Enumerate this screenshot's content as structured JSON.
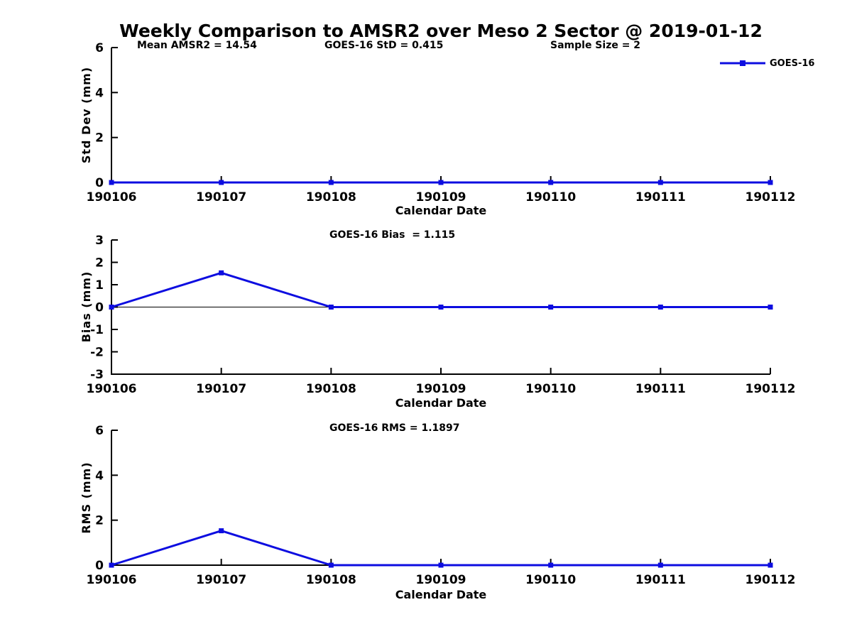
{
  "page": {
    "title": "Weekly Comparison to AMSR2 over Meso 2 Sector @ 2019-01-12"
  },
  "legend": {
    "label": "GOES-16"
  },
  "colors": {
    "series": "#0d0de0",
    "axis": "#000000",
    "text": "#000000",
    "background": "#ffffff"
  },
  "chart_data": [
    {
      "type": "line",
      "panel": "std-dev",
      "annotations": [
        "Mean AMSR2 = 14.54",
        "GOES-16 StD = 0.415",
        "Sample Size = 2"
      ],
      "xlabel": "Calendar Date",
      "ylabel": "Std Dev (mm)",
      "categories": [
        "190106",
        "190107",
        "190108",
        "190109",
        "190110",
        "190111",
        "190112"
      ],
      "series": [
        {
          "name": "GOES-16",
          "values": [
            0,
            0,
            0,
            0,
            0,
            0,
            0
          ]
        }
      ],
      "ylim": [
        0,
        6
      ],
      "yticks": [
        0,
        2,
        4,
        6
      ],
      "zero_line": false,
      "grid": false,
      "legend_position": "top-right"
    },
    {
      "type": "line",
      "panel": "bias",
      "annotations": [
        "GOES-16 Bias  = 1.115"
      ],
      "xlabel": "Calendar Date",
      "ylabel": "Bias (mm)",
      "categories": [
        "190106",
        "190107",
        "190108",
        "190109",
        "190110",
        "190111",
        "190112"
      ],
      "series": [
        {
          "name": "GOES-16",
          "values": [
            0,
            1.53,
            0,
            0,
            0,
            0,
            0
          ]
        }
      ],
      "ylim": [
        -3,
        3
      ],
      "yticks": [
        -3,
        -2,
        -1,
        0,
        1,
        2,
        3
      ],
      "zero_line": true,
      "grid": false,
      "legend_position": "none"
    },
    {
      "type": "line",
      "panel": "rms",
      "annotations": [
        "GOES-16 RMS = 1.1897"
      ],
      "xlabel": "Calendar Date",
      "ylabel": "RMS (mm)",
      "categories": [
        "190106",
        "190107",
        "190108",
        "190109",
        "190110",
        "190111",
        "190112"
      ],
      "series": [
        {
          "name": "GOES-16",
          "values": [
            0,
            1.53,
            0,
            0,
            0,
            0,
            0
          ]
        }
      ],
      "ylim": [
        0,
        6
      ],
      "yticks": [
        0,
        2,
        4,
        6
      ],
      "zero_line": false,
      "grid": false,
      "legend_position": "none"
    }
  ]
}
